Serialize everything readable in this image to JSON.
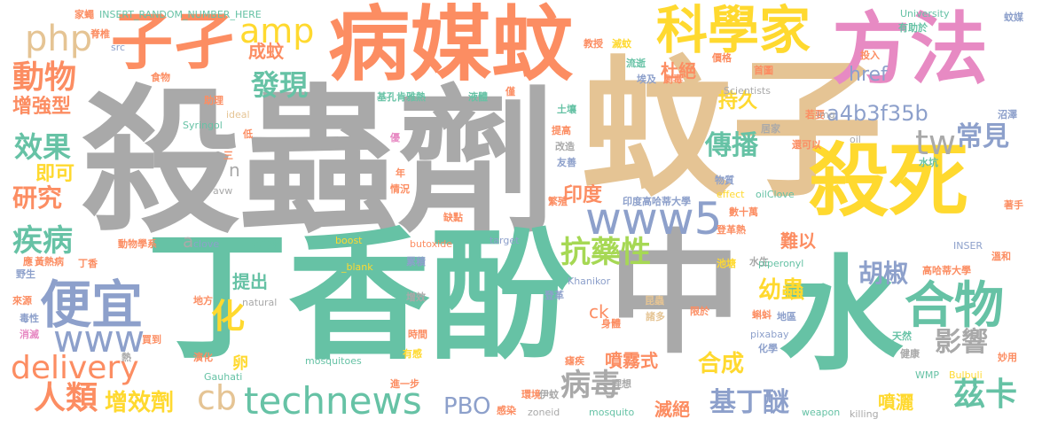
{
  "palette": {
    "gray": "#a9a9a9",
    "tan": "#e5c494",
    "salmon": "#fc8d62",
    "green": "#66c2a5",
    "yellow": "#ffd92f",
    "blue": "#8da0cb",
    "pink": "#e78ac3",
    "lime": "#a6d854"
  },
  "words": [
    {
      "text": "殺蟲劑"
    },
    {
      "text": "蚊子"
    },
    {
      "text": "丁香酚"
    },
    {
      "text": "中"
    },
    {
      "text": "水"
    },
    {
      "text": "病媒蚊"
    },
    {
      "text": "殺死"
    },
    {
      "text": "方法"
    },
    {
      "text": "子孑"
    },
    {
      "text": "科學家"
    },
    {
      "text": "www5"
    },
    {
      "text": "technews"
    },
    {
      "text": "便宜"
    },
    {
      "text": "合物"
    },
    {
      "text": "www"
    },
    {
      "text": "delivery"
    },
    {
      "text": "人類"
    },
    {
      "text": "動物"
    },
    {
      "text": "php"
    },
    {
      "text": "amp"
    },
    {
      "text": "tw"
    },
    {
      "text": "發現"
    },
    {
      "text": "傳播"
    },
    {
      "text": "常見"
    },
    {
      "text": "抗藥性"
    },
    {
      "text": "疾病"
    },
    {
      "text": "效果"
    },
    {
      "text": "研究"
    },
    {
      "text": "化"
    },
    {
      "text": "病毒"
    },
    {
      "text": "影響"
    },
    {
      "text": "茲卡"
    },
    {
      "text": "基丁醚"
    },
    {
      "text": "PBO"
    },
    {
      "text": "增效劑"
    },
    {
      "text": "cb"
    },
    {
      "text": "合成"
    },
    {
      "text": "胡椒"
    },
    {
      "text": "a4b3f35b"
    },
    {
      "text": "幼蟲"
    },
    {
      "text": "href"
    },
    {
      "text": "增強型"
    },
    {
      "text": "即可"
    },
    {
      "text": "成蚊"
    },
    {
      "text": "杜絕"
    },
    {
      "text": "持久"
    },
    {
      "text": "印度"
    },
    {
      "text": "提出"
    },
    {
      "text": "難以"
    },
    {
      "text": "噴霧式"
    },
    {
      "text": "滅絕"
    },
    {
      "text": "噴灑"
    },
    {
      "text": "ck"
    },
    {
      "text": "卵"
    },
    {
      "text": "n"
    },
    {
      "text": "a"
    },
    {
      "text": "INSERT_RANDOM_NUMBER_HERE"
    },
    {
      "text": "家蠅"
    },
    {
      "text": "脊椎"
    },
    {
      "text": "src"
    },
    {
      "text": "食物"
    },
    {
      "text": "University"
    },
    {
      "text": "有助於"
    },
    {
      "text": "蚊媒"
    },
    {
      "text": "教授"
    },
    {
      "text": "滅蚊"
    },
    {
      "text": "流逝"
    },
    {
      "text": "價格"
    },
    {
      "text": "投入"
    },
    {
      "text": "首圖"
    },
    {
      "text": "埃及"
    },
    {
      "text": "劇毒"
    },
    {
      "text": "助理"
    },
    {
      "text": "基孔肯雅熱"
    },
    {
      "text": "液體"
    },
    {
      "text": "僅"
    },
    {
      "text": "Scientists"
    },
    {
      "text": "若要"
    },
    {
      "text": "沼澤"
    },
    {
      "text": "ideal"
    },
    {
      "text": "Syringol"
    },
    {
      "text": "土壤"
    },
    {
      "text": "img"
    },
    {
      "text": "居家"
    },
    {
      "text": "oil"
    },
    {
      "text": "提高"
    },
    {
      "text": "改造"
    },
    {
      "text": "還可以"
    },
    {
      "text": "低"
    },
    {
      "text": "優"
    },
    {
      "text": "友善"
    },
    {
      "text": "水坑"
    },
    {
      "text": "三"
    },
    {
      "text": "年"
    },
    {
      "text": "情況"
    },
    {
      "text": "物質"
    },
    {
      "text": "avw"
    },
    {
      "text": "effect"
    },
    {
      "text": "oilClove"
    },
    {
      "text": "印度高哈蒂大學"
    },
    {
      "text": "繁殖"
    },
    {
      "text": "數十萬"
    },
    {
      "text": "缺點"
    },
    {
      "text": "著手"
    },
    {
      "text": "動物學系"
    },
    {
      "text": "clove"
    },
    {
      "text": "化合物"
    },
    {
      "text": "boost"
    },
    {
      "text": "butoxide"
    },
    {
      "text": "target"
    },
    {
      "text": "登革熱"
    },
    {
      "text": "池塘"
    },
    {
      "text": "水生"
    },
    {
      "text": "INSER"
    },
    {
      "text": "溫和"
    },
    {
      "text": "高哈蒂大學"
    },
    {
      "text": "黃熱病"
    },
    {
      "text": "丁香"
    },
    {
      "text": "_blank"
    },
    {
      "text": "累積"
    },
    {
      "text": "piperonyl"
    },
    {
      "text": "野生"
    },
    {
      "text": "應"
    },
    {
      "text": "來源"
    },
    {
      "text": "地方"
    },
    {
      "text": "增效"
    },
    {
      "text": "Khanikor"
    },
    {
      "text": "natural"
    },
    {
      "text": "登革"
    },
    {
      "text": "昆蟲"
    },
    {
      "text": "毒性"
    },
    {
      "text": "身體"
    },
    {
      "text": "諸多"
    },
    {
      "text": "限於"
    },
    {
      "text": "蝌蚪"
    },
    {
      "text": "消滅"
    },
    {
      "text": "地區"
    },
    {
      "text": "買到"
    },
    {
      "text": "時間"
    },
    {
      "text": "天然"
    },
    {
      "text": "pixabay"
    },
    {
      "text": "熱"
    },
    {
      "text": "演化"
    },
    {
      "text": "mosquitoes"
    },
    {
      "text": "有感"
    },
    {
      "text": "瘧疾"
    },
    {
      "text": "化學"
    },
    {
      "text": "健康"
    },
    {
      "text": "妙用"
    },
    {
      "text": "Gauhati"
    },
    {
      "text": "WMP"
    },
    {
      "text": "Bulbuli"
    },
    {
      "text": "進一步"
    },
    {
      "text": "環境"
    },
    {
      "text": "伊蚊"
    },
    {
      "text": "理想"
    },
    {
      "text": "感染"
    },
    {
      "text": "zoneid"
    },
    {
      "text": "mosquito"
    },
    {
      "text": "weapon"
    },
    {
      "text": "killing"
    }
  ]
}
